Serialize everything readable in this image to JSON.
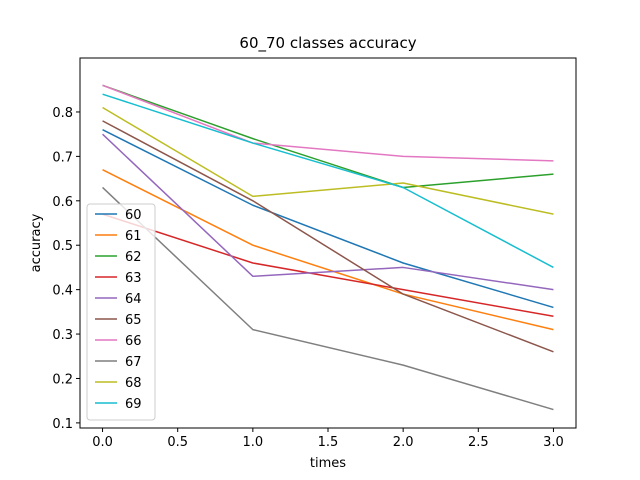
{
  "chart_data": {
    "type": "line",
    "title": "60_70 classes accuracy",
    "xlabel": "times",
    "ylabel": "accuracy",
    "x": [
      0,
      1,
      2,
      3
    ],
    "xlim": [
      -0.15,
      3.15
    ],
    "ylim": [
      0.0885,
      0.9215
    ],
    "xticks": [
      0.0,
      0.5,
      1.0,
      1.5,
      2.0,
      2.5,
      3.0
    ],
    "xtick_labels": [
      "0.0",
      "0.5",
      "1.0",
      "1.5",
      "2.0",
      "2.5",
      "3.0"
    ],
    "yticks": [
      0.1,
      0.2,
      0.3,
      0.4,
      0.5,
      0.6,
      0.7,
      0.8
    ],
    "ytick_labels": [
      "0.1",
      "0.2",
      "0.3",
      "0.4",
      "0.5",
      "0.6",
      "0.7",
      "0.8"
    ],
    "grid": false,
    "legend_position": "lower-left",
    "series": [
      {
        "name": "60",
        "color": "#1f77b4",
        "values": [
          0.76,
          0.59,
          0.46,
          0.36
        ]
      },
      {
        "name": "61",
        "color": "#ff7f0e",
        "values": [
          0.67,
          0.5,
          0.39,
          0.31
        ]
      },
      {
        "name": "62",
        "color": "#2ca02c",
        "values": [
          0.86,
          0.74,
          0.63,
          0.66
        ]
      },
      {
        "name": "63",
        "color": "#d62728",
        "values": [
          0.57,
          0.46,
          0.4,
          0.34
        ]
      },
      {
        "name": "64",
        "color": "#9467bd",
        "values": [
          0.75,
          0.43,
          0.45,
          0.4
        ]
      },
      {
        "name": "65",
        "color": "#8c564b",
        "values": [
          0.78,
          0.6,
          0.39,
          0.26
        ]
      },
      {
        "name": "66",
        "color": "#e377c2",
        "values": [
          0.86,
          0.73,
          0.7,
          0.69
        ]
      },
      {
        "name": "67",
        "color": "#7f7f7f",
        "values": [
          0.63,
          0.31,
          0.23,
          0.13
        ]
      },
      {
        "name": "68",
        "color": "#bcbd22",
        "values": [
          0.81,
          0.61,
          0.64,
          0.57
        ]
      },
      {
        "name": "69",
        "color": "#17becf",
        "values": [
          0.84,
          0.73,
          0.63,
          0.45
        ]
      }
    ]
  }
}
